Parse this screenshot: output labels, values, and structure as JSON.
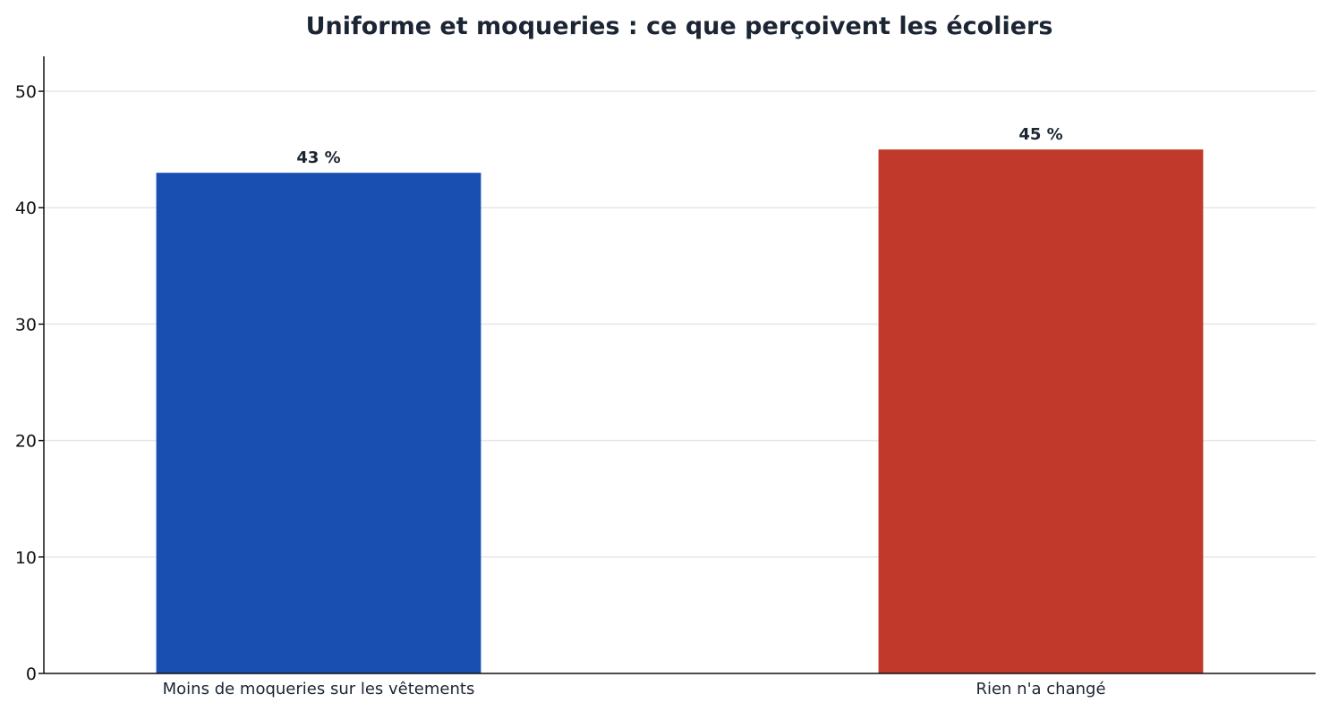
{
  "chart_data": {
    "type": "bar",
    "title": "Uniforme et moqueries : ce que perçoivent les écoliers",
    "xlabel": "",
    "ylabel": "",
    "categories": [
      "Moins de moqueries sur les vêtements",
      "Rien n'a changé"
    ],
    "values": [
      43,
      45
    ],
    "data_labels": [
      "43 %",
      "45 %"
    ],
    "bar_colors": [
      "#1a4fb2",
      "#c0392b"
    ],
    "ylim": [
      0,
      53
    ],
    "yticks": [
      0,
      10,
      20,
      30,
      40,
      50
    ],
    "ytick_labels": [
      "0",
      "10",
      "20",
      "30",
      "40",
      "50"
    ],
    "grid": "horizontal",
    "legend": "none"
  }
}
